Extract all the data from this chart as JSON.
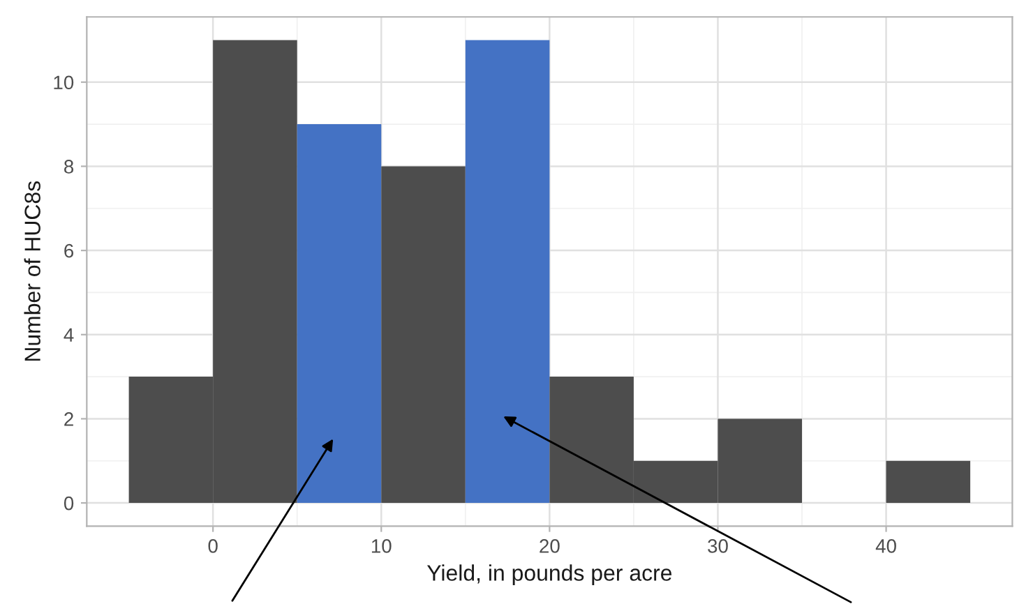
{
  "chart_data": {
    "type": "histogram",
    "xlabel": "Yield, in pounds per acre",
    "ylabel": "Number of HUC8s",
    "bins": [
      -5,
      0,
      5,
      10,
      15,
      20,
      25,
      30,
      35,
      40,
      45
    ],
    "values": [
      3,
      11,
      9,
      8,
      11,
      3,
      1,
      2,
      0,
      1
    ],
    "colors": [
      "#4d4d4d",
      "#4d4d4d",
      "#4472c4",
      "#4d4d4d",
      "#4472c4",
      "#4d4d4d",
      "#4d4d4d",
      "#4d4d4d",
      "#4d4d4d",
      "#4d4d4d"
    ],
    "xlim": [
      -7.5,
      47.5
    ],
    "ylim": [
      -0.55,
      11.55
    ],
    "xticks": [
      0,
      10,
      20,
      30,
      40
    ],
    "yticks": [
      0,
      2,
      4,
      6,
      8,
      10
    ],
    "grid": true
  }
}
